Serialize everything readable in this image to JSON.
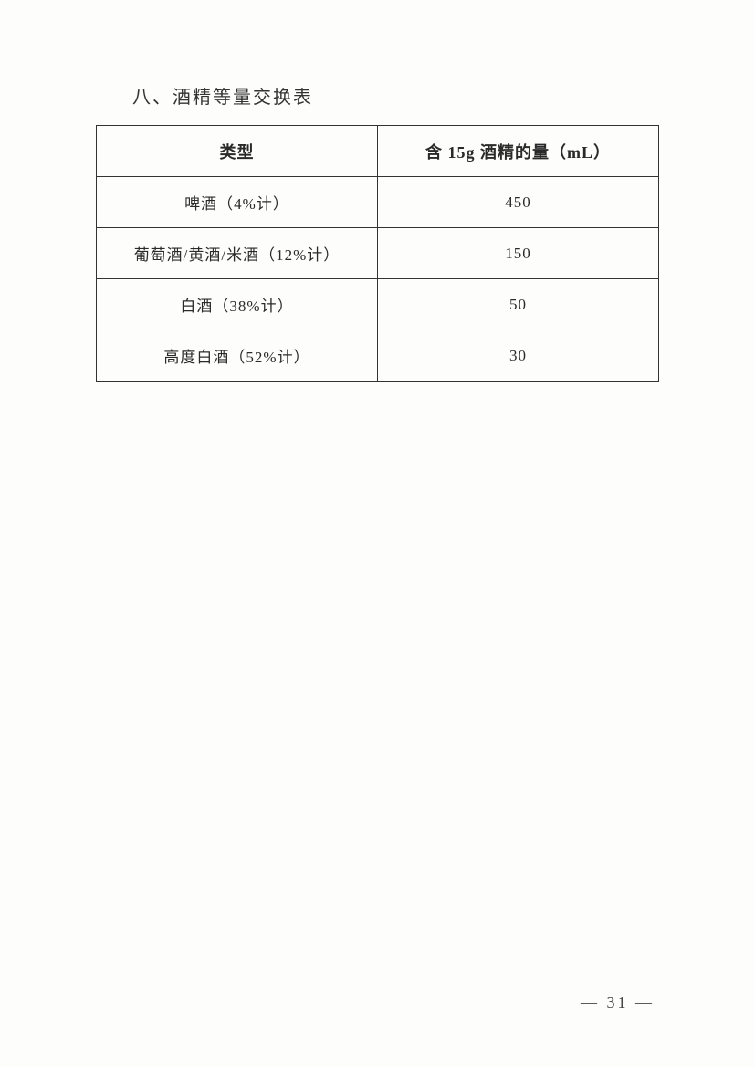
{
  "title": "八、酒精等量交换表",
  "table": {
    "columns": [
      "类型",
      "含 15g 酒精的量（mL）"
    ],
    "rows": [
      [
        "啤酒（4%计）",
        "450"
      ],
      [
        "葡萄酒/黄酒/米酒（12%计）",
        "150"
      ],
      [
        "白酒（38%计）",
        "50"
      ],
      [
        "高度白酒（52%计）",
        "30"
      ]
    ]
  },
  "pageNumber": "— 31 —"
}
